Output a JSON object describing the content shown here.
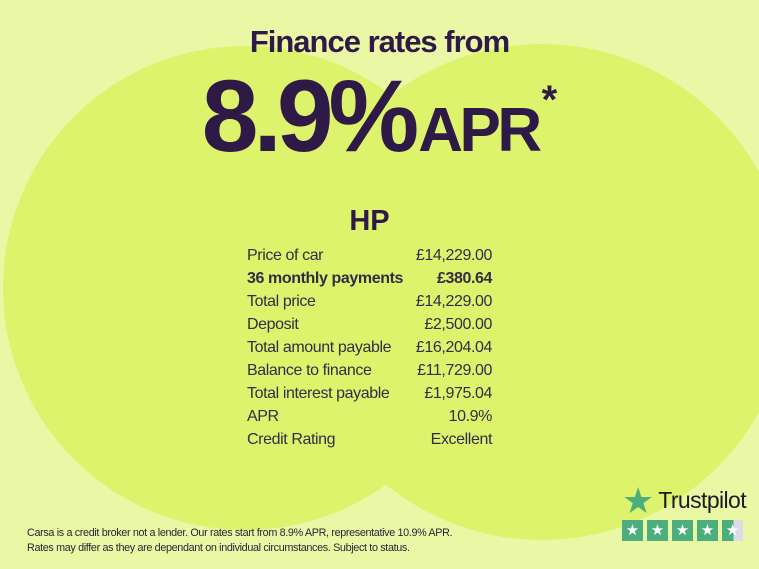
{
  "header": {
    "eyebrow": "Finance rates from",
    "rate": "8.9%",
    "rate_suffix": "APR",
    "footnote_marker": "*"
  },
  "product": {
    "title": "HP"
  },
  "finance_table": {
    "rows": [
      {
        "label": "Price of car",
        "value": "£14,229.00",
        "bold": false
      },
      {
        "label": "36 monthly payments",
        "value": "£380.64",
        "bold": true
      },
      {
        "label": "Total price",
        "value": "£14,229.00",
        "bold": false
      },
      {
        "label": "Deposit",
        "value": "£2,500.00",
        "bold": false
      },
      {
        "label": "Total amount payable",
        "value": "£16,204.04",
        "bold": false
      },
      {
        "label": "Balance to finance",
        "value": "£11,729.00",
        "bold": false
      },
      {
        "label": "Total interest payable",
        "value": "£1,975.04",
        "bold": false
      },
      {
        "label": "APR",
        "value": "10.9%",
        "bold": false
      },
      {
        "label": "Credit Rating",
        "value": "Excellent",
        "bold": false
      }
    ]
  },
  "disclaimer": {
    "lines": [
      "Carsa is a credit broker not a lender. Our rates start from 8.9% APR, representative 10.9% APR.",
      "Rates may differ as they are dependant on individual circumstances. Subject to status."
    ]
  },
  "trustpilot": {
    "brand": "Trustpilot",
    "rating_stars": 4.5,
    "star_icon": "★",
    "boxes": [
      "full",
      "full",
      "full",
      "full",
      "half"
    ]
  },
  "colors": {
    "bg": "#EAF7A5",
    "blob": "#DEF36C",
    "purple": "#2F1A47",
    "table_text": "#342C44",
    "disclaimer_text": "#2B2537",
    "tp_green": "#4DAE7D",
    "tp_half_gray": "#DBDDE6",
    "tp_text": "#1C1C1C"
  }
}
